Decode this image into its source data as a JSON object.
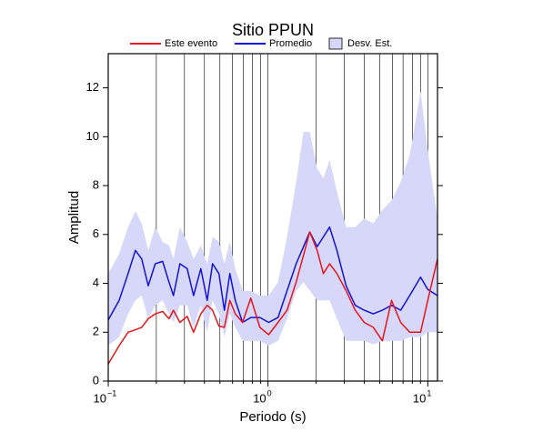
{
  "chart_data": {
    "type": "line",
    "title": "Sitio PPUN",
    "x_label": "Periodo (s)",
    "y_label": "Amplitud",
    "log_x": true,
    "grid": "x",
    "xlim": [
      0.1,
      11.5
    ],
    "ylim": [
      0,
      13.4
    ],
    "xticks": [
      {
        "value": 0.1,
        "label": "10",
        "exponent": "−1"
      },
      {
        "value": 1,
        "label": "10",
        "exponent": "0"
      },
      {
        "value": 10,
        "label": "10",
        "exponent": "1"
      }
    ],
    "xticks_minor": [
      0.2,
      0.3,
      0.4,
      0.5,
      0.6,
      0.7,
      0.8,
      0.9,
      2,
      3,
      4,
      5,
      6,
      7,
      8,
      9
    ],
    "yticks": [
      0,
      2,
      4,
      6,
      8,
      10,
      12
    ],
    "x": [
      0.1,
      0.117,
      0.133,
      0.148,
      0.162,
      0.178,
      0.197,
      0.219,
      0.24,
      0.256,
      0.281,
      0.312,
      0.342,
      0.38,
      0.416,
      0.45,
      0.493,
      0.533,
      0.577,
      0.624,
      0.693,
      0.78,
      0.889,
      1.01,
      1.155,
      1.316,
      1.5,
      1.667,
      1.825,
      2.03,
      2.22,
      2.43,
      2.7,
      3.08,
      3.51,
      4.0,
      4.56,
      5.2,
      5.93,
      6.76,
      7.7,
      9.01,
      10.0,
      11.5
    ],
    "series": [
      {
        "name": "Desv. Est.",
        "kind": "band",
        "color": "#d7d7f9",
        "legend_order": 2,
        "upper": [
          4.4,
          5.2,
          6.3,
          6.95,
          6.45,
          5.35,
          6.3,
          5.7,
          5.55,
          5.0,
          6.3,
          5.7,
          5.0,
          5.55,
          4.8,
          5.9,
          5.7,
          4.8,
          5.7,
          4.6,
          3.7,
          3.7,
          3.5,
          3.5,
          4.05,
          5.9,
          8.15,
          10.2,
          10.2,
          8.7,
          8.3,
          9.05,
          7.75,
          6.3,
          6.3,
          6.65,
          6.45,
          7.0,
          7.4,
          8.15,
          9.25,
          11.85,
          9.45,
          6.65
        ],
        "lower": [
          1.45,
          1.8,
          2.75,
          3.3,
          3.5,
          2.55,
          3.1,
          3.3,
          2.75,
          2.4,
          3.1,
          3.1,
          2.2,
          3.1,
          2.0,
          3.3,
          2.75,
          1.8,
          2.75,
          2.2,
          1.65,
          1.65,
          1.65,
          1.45,
          1.65,
          2.55,
          3.7,
          4.05,
          3.7,
          3.3,
          3.3,
          3.3,
          2.55,
          1.65,
          1.65,
          1.65,
          1.5,
          1.65,
          1.65,
          1.65,
          1.8,
          1.8,
          2.0,
          2.0
        ]
      },
      {
        "name": "Promedio",
        "kind": "line",
        "color": "#1212d8",
        "legend_order": 1,
        "values": [
          2.5,
          3.3,
          4.4,
          5.35,
          5.0,
          3.9,
          4.8,
          4.9,
          4.05,
          3.5,
          4.8,
          4.6,
          3.5,
          4.6,
          3.3,
          4.8,
          4.4,
          2.9,
          4.4,
          3.3,
          2.4,
          2.6,
          2.6,
          2.4,
          2.6,
          3.7,
          4.8,
          5.5,
          6.1,
          5.5,
          5.9,
          6.3,
          5.35,
          3.9,
          3.1,
          2.9,
          2.75,
          2.9,
          3.1,
          2.9,
          3.5,
          4.25,
          3.75,
          3.5
        ]
      },
      {
        "name": "Este evento",
        "kind": "line",
        "color": "#e5161b",
        "legend_order": 0,
        "values": [
          0.7,
          1.45,
          2.0,
          2.1,
          2.2,
          2.55,
          2.75,
          2.85,
          2.55,
          2.9,
          2.4,
          2.65,
          2.0,
          2.75,
          3.1,
          2.9,
          2.25,
          2.2,
          3.3,
          2.75,
          2.4,
          3.4,
          2.2,
          1.9,
          2.4,
          2.9,
          4.05,
          5.15,
          6.1,
          5.35,
          4.4,
          4.8,
          4.4,
          3.7,
          2.9,
          2.4,
          2.2,
          1.65,
          3.3,
          2.4,
          2.0,
          2.0,
          3.3,
          5.0
        ]
      }
    ]
  }
}
